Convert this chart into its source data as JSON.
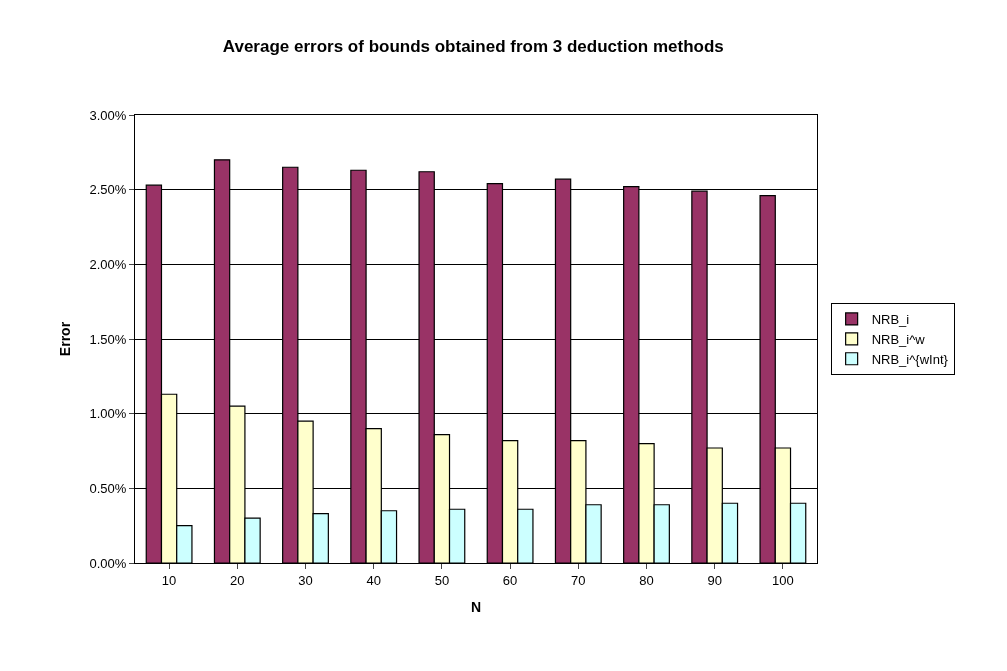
{
  "chart_data": {
    "type": "bar",
    "title": "Average errors of bounds obtained from 3 deduction methods",
    "xlabel": "N",
    "ylabel": "Error",
    "categories": [
      "10",
      "20",
      "30",
      "40",
      "50",
      "60",
      "70",
      "80",
      "90",
      "100"
    ],
    "series": [
      {
        "name": "NRB_i",
        "color": "#993366",
        "values": [
          2.53,
          2.7,
          2.65,
          2.63,
          2.62,
          2.54,
          2.57,
          2.52,
          2.49,
          2.46
        ]
      },
      {
        "name": "NRB_i^w",
        "color": "#ffffcc",
        "values": [
          1.13,
          1.05,
          0.95,
          0.9,
          0.86,
          0.82,
          0.82,
          0.8,
          0.77,
          0.77
        ]
      },
      {
        "name": "NRB_i^{wInt}",
        "color": "#ccffff",
        "values": [
          0.25,
          0.3,
          0.33,
          0.35,
          0.36,
          0.36,
          0.39,
          0.39,
          0.4,
          0.4
        ]
      }
    ],
    "ylim": [
      0,
      3
    ],
    "yticks": [
      {
        "value": 0,
        "label": "0.00%"
      },
      {
        "value": 0.5,
        "label": "0.50%"
      },
      {
        "value": 1,
        "label": "1.00%"
      },
      {
        "value": 1.5,
        "label": "1.50%"
      },
      {
        "value": 2,
        "label": "2.00%"
      },
      {
        "value": 2.5,
        "label": "2.50%"
      },
      {
        "value": 3,
        "label": "3.00%"
      }
    ],
    "grid": "y",
    "legend": "right"
  }
}
